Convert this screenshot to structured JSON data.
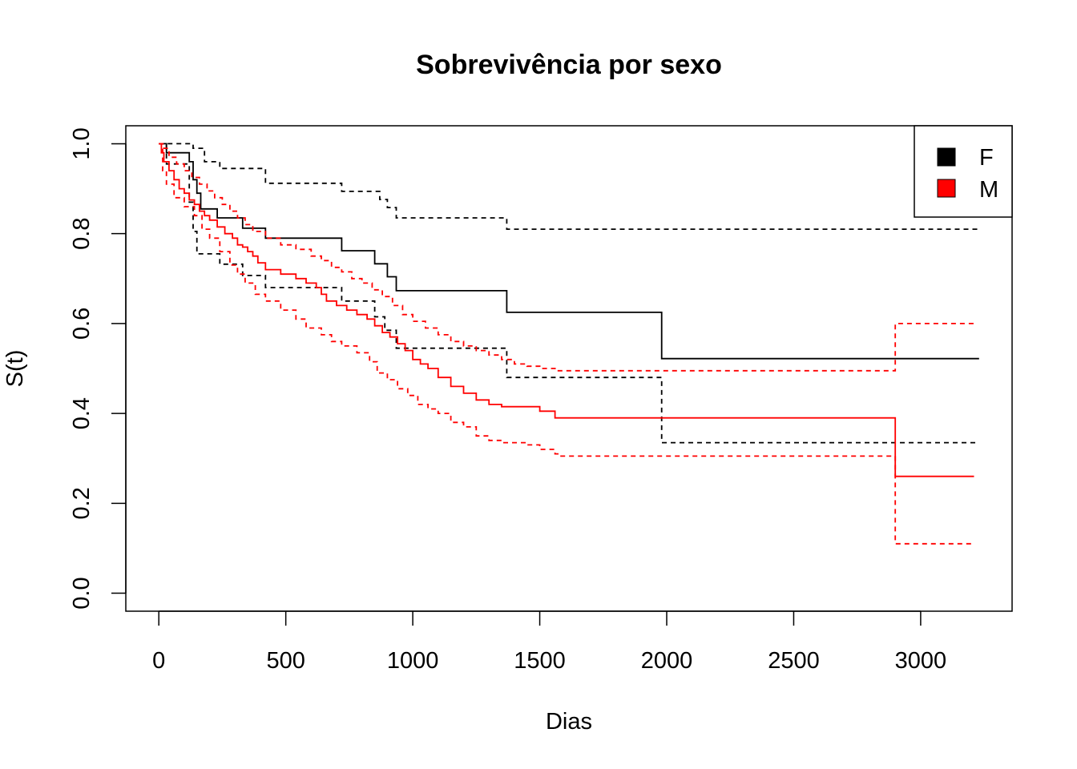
{
  "chart_data": {
    "type": "line",
    "subtype": "kaplan-meier-step",
    "title": "Sobrevivência por sexo",
    "xlabel": "Dias",
    "ylabel": "S(t)",
    "xlim": [
      -130,
      3360
    ],
    "ylim": [
      -0.04,
      1.04
    ],
    "xticks": [
      0,
      500,
      1000,
      1500,
      2000,
      2500,
      3000
    ],
    "yticks": [
      0.0,
      0.2,
      0.4,
      0.6,
      0.8,
      1.0
    ],
    "xtick_labels": [
      "0",
      "500",
      "1000",
      "1500",
      "2000",
      "2500",
      "3000"
    ],
    "ytick_labels": [
      "0.0",
      "0.2",
      "0.4",
      "0.6",
      "0.8",
      "1.0"
    ],
    "grid": false,
    "legend": {
      "position": "top-right",
      "entries": [
        {
          "label": "F",
          "color": "#000000"
        },
        {
          "label": "M",
          "color": "#ff0000"
        }
      ]
    },
    "series": [
      {
        "name": "F",
        "color": "#000000",
        "estimate": {
          "x": [
            0,
            30,
            120,
            135,
            150,
            165,
            230,
            330,
            420,
            720,
            850,
            900,
            935,
            1370,
            1980,
            3230
          ],
          "y": [
            1.0,
            0.98,
            0.96,
            0.92,
            0.89,
            0.855,
            0.835,
            0.812,
            0.79,
            0.762,
            0.733,
            0.704,
            0.673,
            0.625,
            0.522,
            0.522
          ]
        },
        "upper": {
          "x": [
            0,
            60,
            135,
            180,
            240,
            420,
            720,
            870,
            900,
            935,
            1370,
            1980,
            3230
          ],
          "y": [
            1.0,
            1.0,
            0.99,
            0.96,
            0.945,
            0.912,
            0.894,
            0.876,
            0.858,
            0.835,
            0.81,
            0.81,
            0.81
          ]
        },
        "lower": {
          "x": [
            0,
            30,
            120,
            135,
            150,
            170,
            240,
            330,
            420,
            720,
            850,
            890,
            935,
            1370,
            1980,
            3230
          ],
          "y": [
            1.0,
            0.955,
            0.87,
            0.805,
            0.755,
            0.755,
            0.732,
            0.707,
            0.68,
            0.65,
            0.615,
            0.585,
            0.545,
            0.48,
            0.335,
            0.335
          ]
        }
      },
      {
        "name": "M",
        "color": "#ff0000",
        "estimate": {
          "x": [
            0,
            10,
            20,
            40,
            60,
            80,
            100,
            120,
            140,
            160,
            180,
            200,
            230,
            260,
            290,
            310,
            330,
            350,
            370,
            390,
            420,
            480,
            540,
            580,
            620,
            640,
            660,
            700,
            740,
            780,
            820,
            850,
            880,
            910,
            940,
            970,
            1000,
            1030,
            1060,
            1100,
            1150,
            1200,
            1250,
            1300,
            1350,
            1420,
            1500,
            1560,
            1620,
            2900,
            3210
          ],
          "y": [
            1.0,
            0.98,
            0.96,
            0.94,
            0.92,
            0.9,
            0.89,
            0.875,
            0.865,
            0.85,
            0.84,
            0.83,
            0.815,
            0.8,
            0.79,
            0.775,
            0.77,
            0.76,
            0.75,
            0.735,
            0.72,
            0.71,
            0.7,
            0.69,
            0.68,
            0.665,
            0.65,
            0.64,
            0.63,
            0.62,
            0.61,
            0.595,
            0.58,
            0.57,
            0.555,
            0.54,
            0.52,
            0.51,
            0.5,
            0.48,
            0.46,
            0.445,
            0.43,
            0.42,
            0.415,
            0.415,
            0.405,
            0.39,
            0.39,
            0.26,
            0.26
          ]
        },
        "upper": {
          "x": [
            0,
            20,
            40,
            70,
            100,
            130,
            160,
            190,
            220,
            250,
            280,
            310,
            340,
            370,
            420,
            480,
            540,
            600,
            640,
            680,
            720,
            760,
            800,
            840,
            880,
            920,
            960,
            1000,
            1050,
            1100,
            1150,
            1200,
            1250,
            1300,
            1350,
            1400,
            1450,
            1500,
            1560,
            2900,
            3210
          ],
          "y": [
            1.0,
            0.99,
            0.97,
            0.955,
            0.94,
            0.925,
            0.91,
            0.895,
            0.88,
            0.865,
            0.85,
            0.835,
            0.82,
            0.805,
            0.79,
            0.775,
            0.765,
            0.75,
            0.74,
            0.725,
            0.715,
            0.7,
            0.69,
            0.675,
            0.66,
            0.64,
            0.62,
            0.605,
            0.59,
            0.575,
            0.56,
            0.55,
            0.54,
            0.53,
            0.52,
            0.51,
            0.505,
            0.5,
            0.495,
            0.6,
            0.6
          ]
        },
        "lower": {
          "x": [
            0,
            15,
            30,
            60,
            100,
            140,
            170,
            200,
            240,
            280,
            310,
            340,
            380,
            420,
            480,
            540,
            580,
            640,
            680,
            720,
            780,
            830,
            860,
            900,
            940,
            980,
            1020,
            1060,
            1100,
            1150,
            1200,
            1250,
            1300,
            1350,
            1400,
            1450,
            1500,
            1560,
            1580,
            2900,
            3210
          ],
          "y": [
            1.0,
            0.94,
            0.91,
            0.88,
            0.86,
            0.84,
            0.81,
            0.79,
            0.76,
            0.73,
            0.71,
            0.69,
            0.665,
            0.65,
            0.63,
            0.61,
            0.59,
            0.575,
            0.56,
            0.55,
            0.535,
            0.515,
            0.49,
            0.475,
            0.455,
            0.44,
            0.42,
            0.41,
            0.4,
            0.38,
            0.37,
            0.35,
            0.34,
            0.335,
            0.335,
            0.33,
            0.32,
            0.31,
            0.305,
            0.11,
            0.11
          ]
        }
      }
    ]
  }
}
